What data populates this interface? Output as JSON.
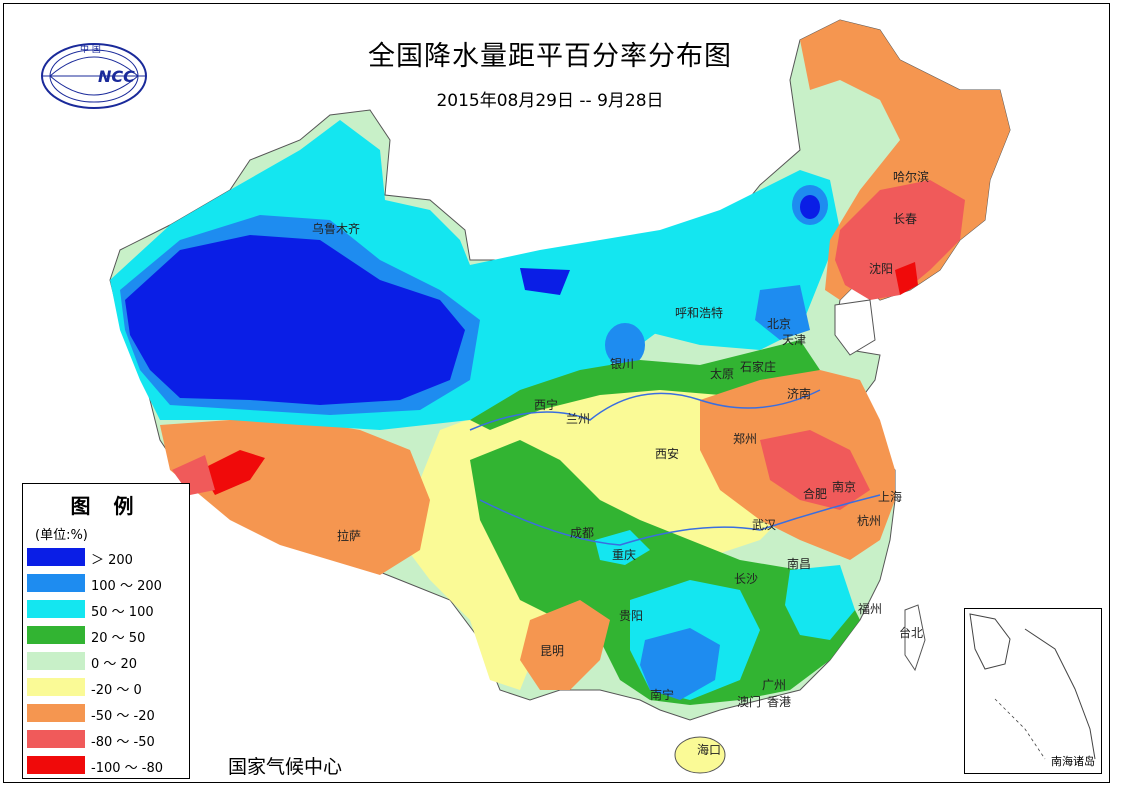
{
  "header": {
    "title": "全国降水量距平百分率分布图",
    "date_range": "2015年08月29日 -- 9月28日"
  },
  "logo": {
    "text": "NCC",
    "top_text": "中 国"
  },
  "legend": {
    "title": "图 例",
    "unit": "(单位:%)",
    "items": [
      {
        "label": "＞ 200",
        "color": "#0a1ee6"
      },
      {
        "label": "100 ～ 200",
        "color": "#1e8cf0"
      },
      {
        "label": "50 ～ 100",
        "color": "#14e6f0"
      },
      {
        "label": "20 ～ 50",
        "color": "#32b432"
      },
      {
        "label": "0 ～ 20",
        "color": "#c8f0c8"
      },
      {
        "label": "-20 ～ 0",
        "color": "#fafa96"
      },
      {
        "label": "-50 ～ -20",
        "color": "#f59650"
      },
      {
        "label": "-80 ～ -50",
        "color": "#f05a5a"
      },
      {
        "label": "-100 ～ -80",
        "color": "#f00a0a"
      }
    ]
  },
  "cities": [
    {
      "name": "乌鲁木齐"
    },
    {
      "name": "哈尔滨"
    },
    {
      "name": "长春"
    },
    {
      "name": "沈阳"
    },
    {
      "name": "呼和浩特"
    },
    {
      "name": "北京"
    },
    {
      "name": "天津"
    },
    {
      "name": "银川"
    },
    {
      "name": "太原"
    },
    {
      "name": "石家庄"
    },
    {
      "name": "济南"
    },
    {
      "name": "西宁"
    },
    {
      "name": "兰州"
    },
    {
      "name": "西安"
    },
    {
      "name": "郑州"
    },
    {
      "name": "合肥"
    },
    {
      "name": "南京"
    },
    {
      "name": "上海"
    },
    {
      "name": "杭州"
    },
    {
      "name": "拉萨"
    },
    {
      "name": "成都"
    },
    {
      "name": "重庆"
    },
    {
      "name": "武汉"
    },
    {
      "name": "南昌"
    },
    {
      "name": "长沙"
    },
    {
      "name": "福州"
    },
    {
      "name": "台北"
    },
    {
      "name": "贵阳"
    },
    {
      "name": "昆明"
    },
    {
      "name": "南宁"
    },
    {
      "name": "广州"
    },
    {
      "name": "澳门"
    },
    {
      "name": "香港"
    },
    {
      "name": "海口"
    }
  ],
  "footer": {
    "agency": "国家气候中心"
  },
  "inset": {
    "label": "南海诸岛"
  }
}
